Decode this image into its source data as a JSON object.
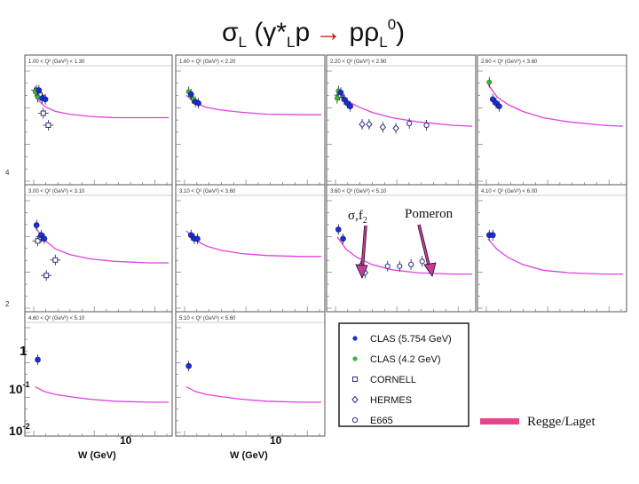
{
  "slide": {
    "title": {
      "sigma": "σ",
      "sub_L1": "L",
      "paren_open": " (γ*",
      "sub_L2": "L",
      "p1": "p",
      "arrow": "→",
      "prho": " pρ",
      "sub_L3": "L",
      "sup0": "0",
      "paren_close": ")"
    },
    "annotation_sigma_f2": "σ,f",
    "annotation_sigma_f2_sub": "2",
    "annotation_pomeron": "Pomeron",
    "regge_legend_label": "Regge/Laget",
    "y_tick_1": "1",
    "y_tick_01": "10",
    "y_tick_01_exp": "-1",
    "y_tick_001": "10",
    "y_tick_001_exp": "-2",
    "x_axis_label": "W (GeV)",
    "x_tick_10": "10",
    "left_axis_fragment_1": "4",
    "left_axis_fragment_2": "2"
  },
  "colors": {
    "curve": "#e040e0",
    "clas57": "#1a2fd0",
    "clas42": "#3cb43c",
    "open": "#2a2a90",
    "errbar": "#222222",
    "regge_bar": "#e8448a",
    "arrow": "#c83a9a"
  },
  "chart_data": {
    "type": "scatter",
    "title": "σL (γ*L p → p ρL0)",
    "xlabel": "W (GeV)",
    "ylabel": "σL",
    "x_scale": "log",
    "y_scale": "log",
    "xlim": [
      1.8,
      30
    ],
    "ylim": [
      0.01,
      4
    ],
    "legend": {
      "placement": "bottom-right",
      "entries": [
        {
          "name": "CLAS (5.754 GeV)",
          "marker": "filled-circle-blue"
        },
        {
          "name": "CLAS (4.2 GeV)",
          "marker": "filled-circle-green"
        },
        {
          "name": "CORNELL",
          "marker": "open-square"
        },
        {
          "name": "HERMES",
          "marker": "open-diamond"
        },
        {
          "name": "E665",
          "marker": "open-circle"
        }
      ]
    },
    "panels": [
      {
        "range_label": "1.00 < Q² (GeV²) < 1.30",
        "left_axis": true,
        "curve": [
          [
            2.0,
            0.9
          ],
          [
            2.4,
            0.55
          ],
          [
            3.0,
            0.42
          ],
          [
            4.0,
            0.36
          ],
          [
            6,
            0.32
          ],
          [
            10,
            0.3
          ],
          [
            20,
            0.3
          ],
          [
            30,
            0.3
          ]
        ],
        "clas57": [
          [
            2.15,
            1.3
          ],
          [
            2.3,
            0.85
          ],
          [
            2.45,
            0.8
          ]
        ],
        "clas42": [
          [
            2.0,
            1.2
          ],
          [
            2.1,
            0.9
          ]
        ],
        "cornell": [
          [
            2.05,
            1.3
          ],
          [
            2.2,
            1.0
          ],
          [
            2.35,
            0.38
          ],
          [
            2.6,
            0.2
          ]
        ],
        "hermes": [],
        "e665": []
      },
      {
        "range_label": "1.60 < Q² (GeV²) < 2.20",
        "left_axis": false,
        "curve": [
          [
            2.0,
            1.0
          ],
          [
            2.4,
            0.65
          ],
          [
            3.0,
            0.52
          ],
          [
            4.0,
            0.45
          ],
          [
            6,
            0.4
          ],
          [
            10,
            0.36
          ],
          [
            20,
            0.35
          ],
          [
            30,
            0.35
          ]
        ],
        "clas57": [
          [
            2.2,
            1.05
          ],
          [
            2.4,
            0.7
          ],
          [
            2.55,
            0.65
          ]
        ],
        "clas42": [
          [
            2.1,
            1.2
          ],
          [
            2.25,
            0.85
          ]
        ],
        "cornell": [],
        "hermes": [],
        "e665": []
      },
      {
        "range_label": "2.20 < Q² (GeV²) < 2.90",
        "left_axis": false,
        "curve": [
          [
            2.0,
            1.4
          ],
          [
            2.4,
            0.75
          ],
          [
            3.0,
            0.55
          ],
          [
            4.0,
            0.4
          ],
          [
            6,
            0.3
          ],
          [
            10,
            0.24
          ],
          [
            20,
            0.2
          ],
          [
            30,
            0.19
          ]
        ],
        "clas57": [
          [
            2.15,
            1.15
          ],
          [
            2.3,
            0.8
          ],
          [
            2.45,
            0.65
          ],
          [
            2.6,
            0.55
          ]
        ],
        "clas42": [
          [
            2.05,
            1.25
          ],
          [
            2.0,
            0.85
          ]
        ],
        "cornell": [
          [
            2.1,
            1.0
          ]
        ],
        "hermes": [
          [
            3.3,
            0.21
          ],
          [
            3.8,
            0.21
          ],
          [
            5.0,
            0.18
          ],
          [
            6.5,
            0.17
          ]
        ],
        "e665": [
          [
            8.5,
            0.22
          ],
          [
            12,
            0.2
          ]
        ]
      },
      {
        "range_label": "2.60 < Q² (GeV²) < 3.60",
        "left_axis": false,
        "curve": [
          [
            2.0,
            1.8
          ],
          [
            2.4,
            0.9
          ],
          [
            3.0,
            0.6
          ],
          [
            4.0,
            0.42
          ],
          [
            6,
            0.3
          ],
          [
            10,
            0.24
          ],
          [
            20,
            0.2
          ],
          [
            30,
            0.19
          ]
        ],
        "clas57": [
          [
            2.2,
            0.8
          ],
          [
            2.35,
            0.65
          ],
          [
            2.5,
            0.55
          ]
        ],
        "clas42": [
          [
            2.05,
            2.0
          ]
        ],
        "cornell": [],
        "hermes": [],
        "e665": []
      },
      {
        "range_label": "3.00 < Q² (GeV²) < 3.10",
        "left_axis": true,
        "curve": [
          [
            2.0,
            0.85
          ],
          [
            2.4,
            0.42
          ],
          [
            3.0,
            0.26
          ],
          [
            4.0,
            0.19
          ],
          [
            6,
            0.15
          ],
          [
            10,
            0.13
          ],
          [
            20,
            0.12
          ],
          [
            30,
            0.12
          ]
        ],
        "clas57": [
          [
            2.05,
            0.95
          ],
          [
            2.25,
            0.55
          ],
          [
            2.4,
            0.45
          ]
        ],
        "clas42": [],
        "cornell": [
          [
            2.1,
            0.4
          ],
          [
            2.25,
            0.5
          ],
          [
            2.5,
            0.06
          ],
          [
            3.0,
            0.14
          ]
        ],
        "hermes": [],
        "e665": []
      },
      {
        "range_label": "3.10 < Q² (GeV²) < 3.60",
        "left_axis": false,
        "curve": [
          [
            2.0,
            0.7
          ],
          [
            2.4,
            0.42
          ],
          [
            3.0,
            0.3
          ],
          [
            4.0,
            0.24
          ],
          [
            6,
            0.2
          ],
          [
            10,
            0.18
          ],
          [
            20,
            0.17
          ],
          [
            30,
            0.17
          ]
        ],
        "clas57": [
          [
            2.2,
            0.55
          ],
          [
            2.35,
            0.45
          ],
          [
            2.5,
            0.45
          ]
        ],
        "clas42": [],
        "cornell": [],
        "hermes": [],
        "e665": []
      },
      {
        "range_label": "3.60 < Q² (GeV²) < 5.10",
        "left_axis": false,
        "curve": [
          [
            2.0,
            0.5
          ],
          [
            2.4,
            0.25
          ],
          [
            3.0,
            0.16
          ],
          [
            4.0,
            0.11
          ],
          [
            6,
            0.082
          ],
          [
            10,
            0.07
          ],
          [
            20,
            0.065
          ],
          [
            30,
            0.065
          ]
        ],
        "clas57": [
          [
            2.05,
            0.75
          ],
          [
            2.25,
            0.45
          ]
        ],
        "clas42": [],
        "cornell": [],
        "hermes": [
          [
            3.2,
            0.1
          ],
          [
            3.5,
            0.07
          ]
        ],
        "e665": [
          [
            5.5,
            0.1
          ],
          [
            7.0,
            0.1
          ],
          [
            8.8,
            0.11
          ],
          [
            11,
            0.13
          ]
        ]
      },
      {
        "range_label": "4.10 < Q² (GeV²) < 6.00",
        "left_axis": false,
        "curve": [
          [
            2.0,
            0.45
          ],
          [
            2.4,
            0.25
          ],
          [
            3.0,
            0.16
          ],
          [
            4.0,
            0.11
          ],
          [
            6,
            0.08
          ],
          [
            10,
            0.07
          ],
          [
            20,
            0.065
          ],
          [
            30,
            0.065
          ]
        ],
        "clas57": [
          [
            2.05,
            0.55
          ],
          [
            2.2,
            0.55
          ]
        ],
        "clas42": [],
        "cornell": [],
        "hermes": [],
        "e665": []
      },
      {
        "range_label": "4.60 < Q² (GeV²) < 5.10",
        "left_axis": true,
        "curve": [
          [
            2.0,
            0.13
          ],
          [
            2.4,
            0.1
          ],
          [
            3.0,
            0.085
          ],
          [
            4.0,
            0.075
          ],
          [
            6,
            0.065
          ],
          [
            10,
            0.058
          ],
          [
            20,
            0.055
          ],
          [
            30,
            0.055
          ]
        ],
        "clas57": [
          [
            2.1,
            0.6
          ]
        ],
        "clas42": [],
        "cornell": [],
        "hermes": [],
        "e665": []
      },
      {
        "range_label": "5.10 < Q² (GeV²) < 5.60",
        "left_axis": false,
        "curve": [
          [
            2.0,
            0.13
          ],
          [
            2.4,
            0.1
          ],
          [
            3.0,
            0.085
          ],
          [
            4.0,
            0.075
          ],
          [
            6,
            0.065
          ],
          [
            10,
            0.058
          ],
          [
            20,
            0.055
          ],
          [
            30,
            0.055
          ]
        ],
        "clas57": [
          [
            2.1,
            0.42
          ]
        ],
        "clas42": [],
        "cornell": [],
        "hermes": [],
        "e665": []
      }
    ]
  }
}
